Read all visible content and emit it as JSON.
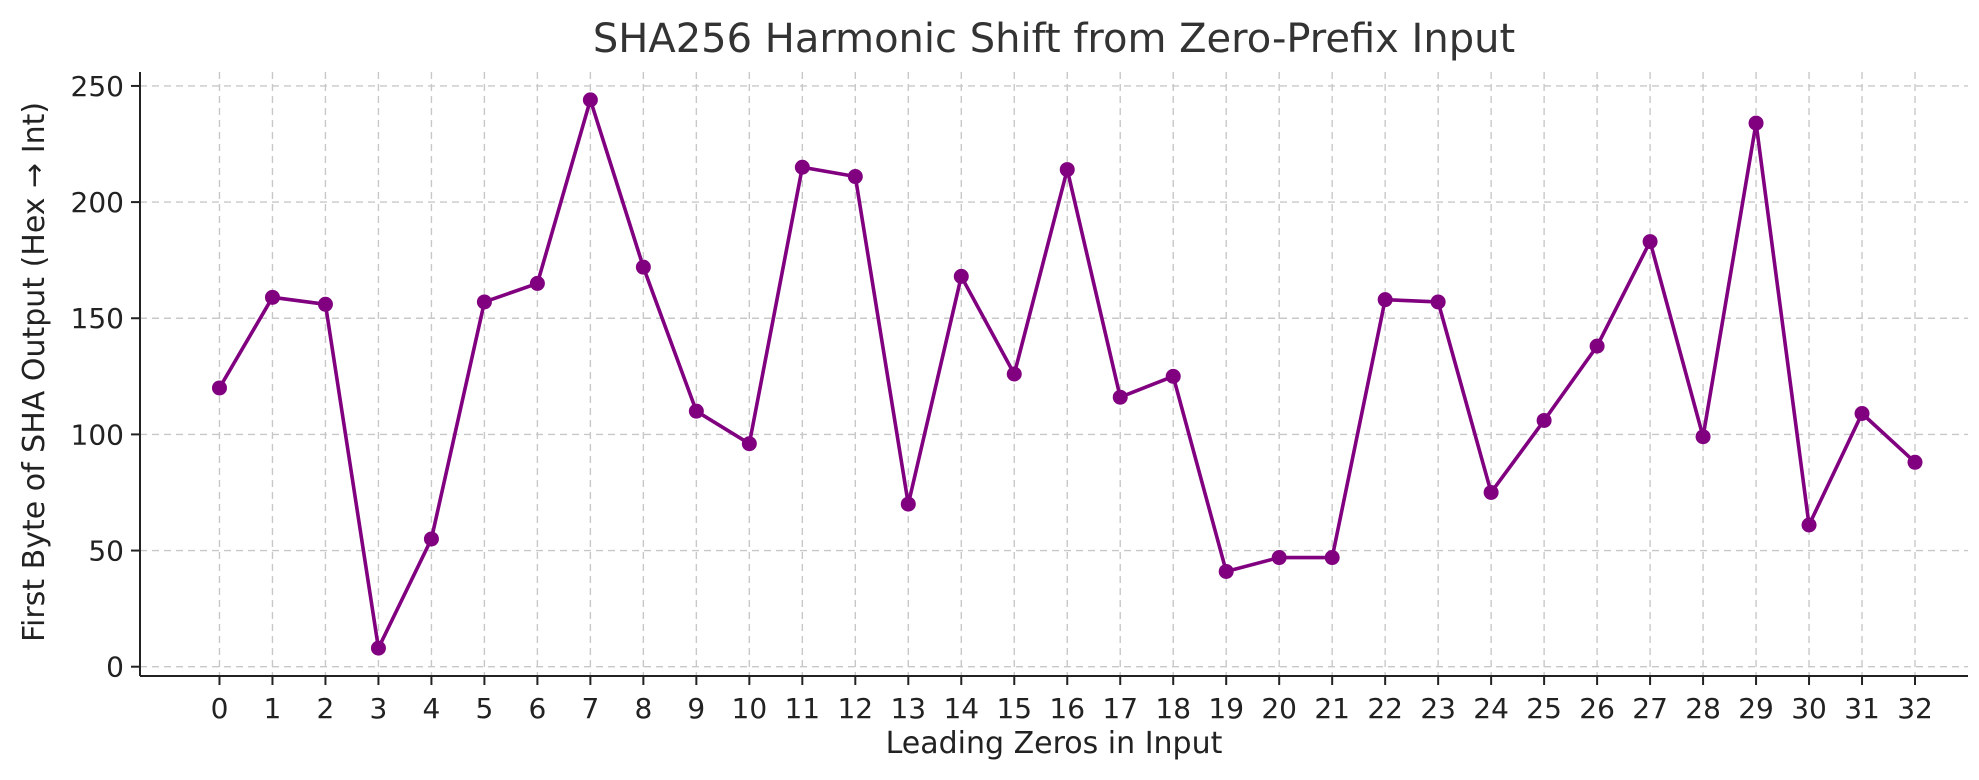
{
  "chart_data": {
    "type": "line",
    "title": "SHA256 Harmonic Shift from Zero-Prefix Input",
    "xlabel": "Leading Zeros in Input",
    "ylabel": "First Byte of SHA Output (Hex → Int)",
    "x": [
      0,
      1,
      2,
      3,
      4,
      5,
      6,
      7,
      8,
      9,
      10,
      11,
      12,
      13,
      14,
      15,
      16,
      17,
      18,
      19,
      20,
      21,
      22,
      23,
      24,
      25,
      26,
      27,
      28,
      29,
      30,
      31,
      32
    ],
    "series": [
      {
        "values": [
          120,
          159,
          156,
          8,
          55,
          157,
          165,
          244,
          172,
          110,
          96,
          215,
          211,
          70,
          168,
          126,
          214,
          116,
          125,
          41,
          47,
          47,
          158,
          157,
          75,
          106,
          138,
          183,
          99,
          234,
          61,
          109,
          88
        ],
        "color": "#800080",
        "marker": "circle"
      }
    ],
    "xlim": [
      -1.5,
      33
    ],
    "ylim": [
      -4,
      256
    ],
    "yticks": [
      0,
      50,
      100,
      150,
      200,
      250
    ],
    "grid": true,
    "legend": "none"
  }
}
